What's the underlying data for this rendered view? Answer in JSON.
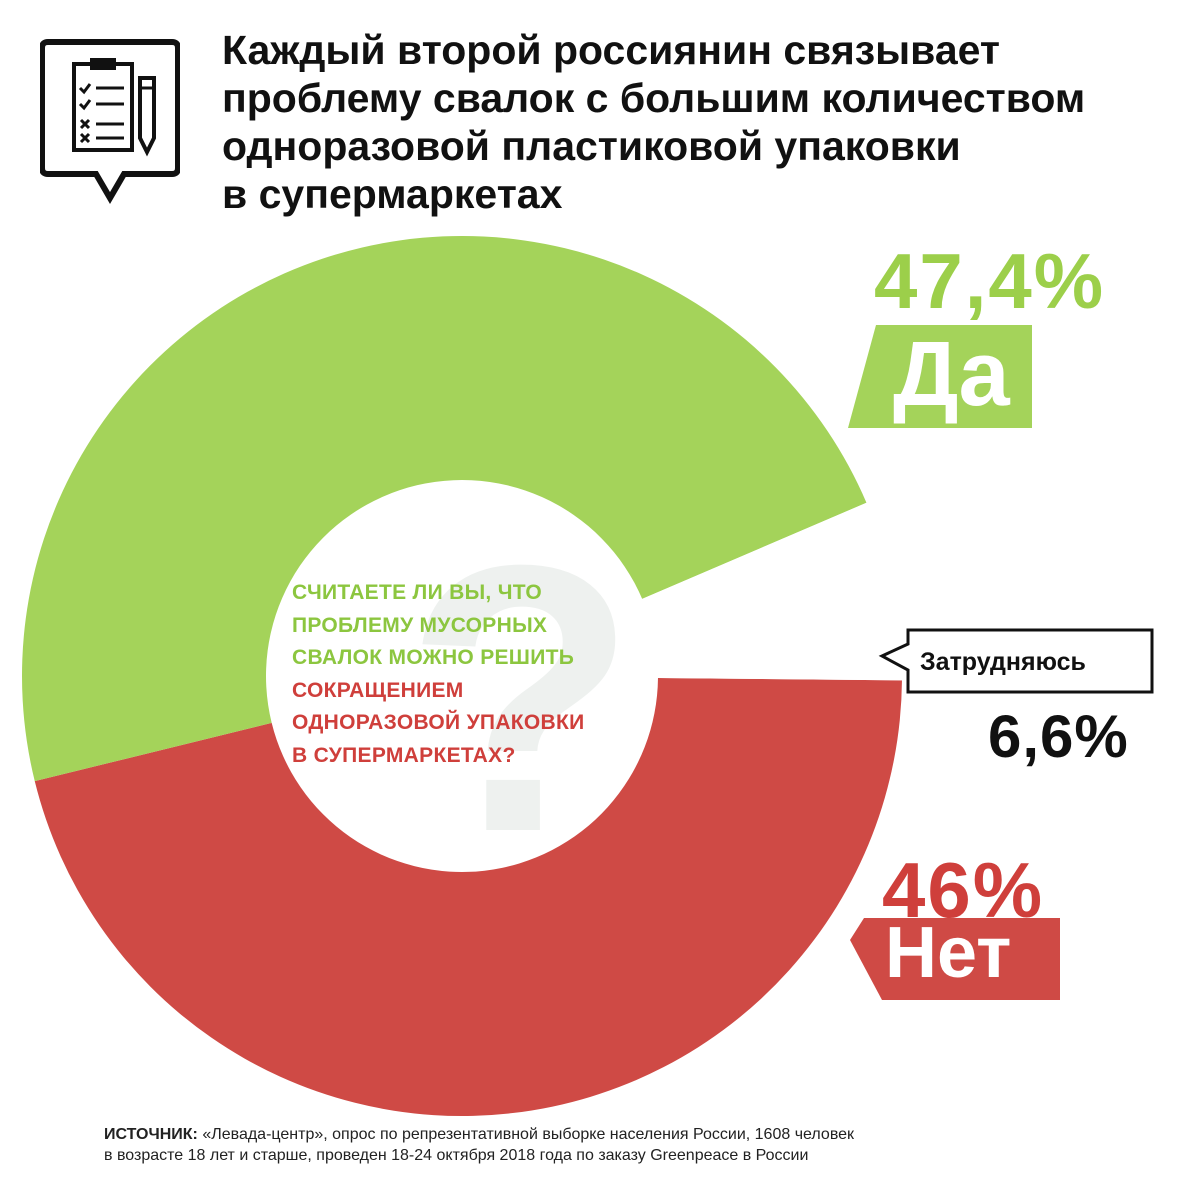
{
  "title_lines": [
    "Каждый второй россиянин связывает",
    "проблему свалок с большим количеством",
    "одноразовой пластиковой упаковки",
    "в супермаркетах"
  ],
  "question": {
    "green_lines": [
      "СЧИТАЕТЕ ЛИ ВЫ, ЧТО",
      "ПРОБЛЕМУ МУСОРНЫХ",
      "СВАЛОК МОЖНО РЕШИТЬ"
    ],
    "red_lines": [
      "СОКРАЩЕНИЕМ",
      "ОДНОРАЗОВОЙ УПАКОВКИ",
      "В СУПЕРМАРКЕТАХ?"
    ]
  },
  "chart_data": {
    "type": "pie",
    "title": "СЧИТАЕТЕ ЛИ ВЫ, ЧТО ПРОБЛЕМУ МУСОРНЫХ СВАЛОК МОЖНО РЕШИТЬ СОКРАЩЕНИЕМ ОДНОРАЗОВОЙ УПАКОВКИ В СУПЕРМАРКЕТАХ?",
    "categories": [
      "Да",
      "Нет",
      "Затрудняюсь"
    ],
    "values": [
      47.4,
      46,
      6.6
    ],
    "value_labels": [
      "47,4%",
      "46%",
      "6,6%"
    ],
    "colors": [
      "#a4d35a",
      "#cf4a45",
      "#ffffff"
    ]
  },
  "source": {
    "prefix": "ИСТОЧНИК:",
    "line1": " «Левада-центр», опрос по репрезентативной выборке населения России, 1608 человек",
    "line2": "в возрасте 18 лет и старше, проведен 18-24 октября 2018 года по заказу Greenpeace в России"
  },
  "icons": [
    "clipboard-checklist-icon",
    "question-mark-icon"
  ]
}
